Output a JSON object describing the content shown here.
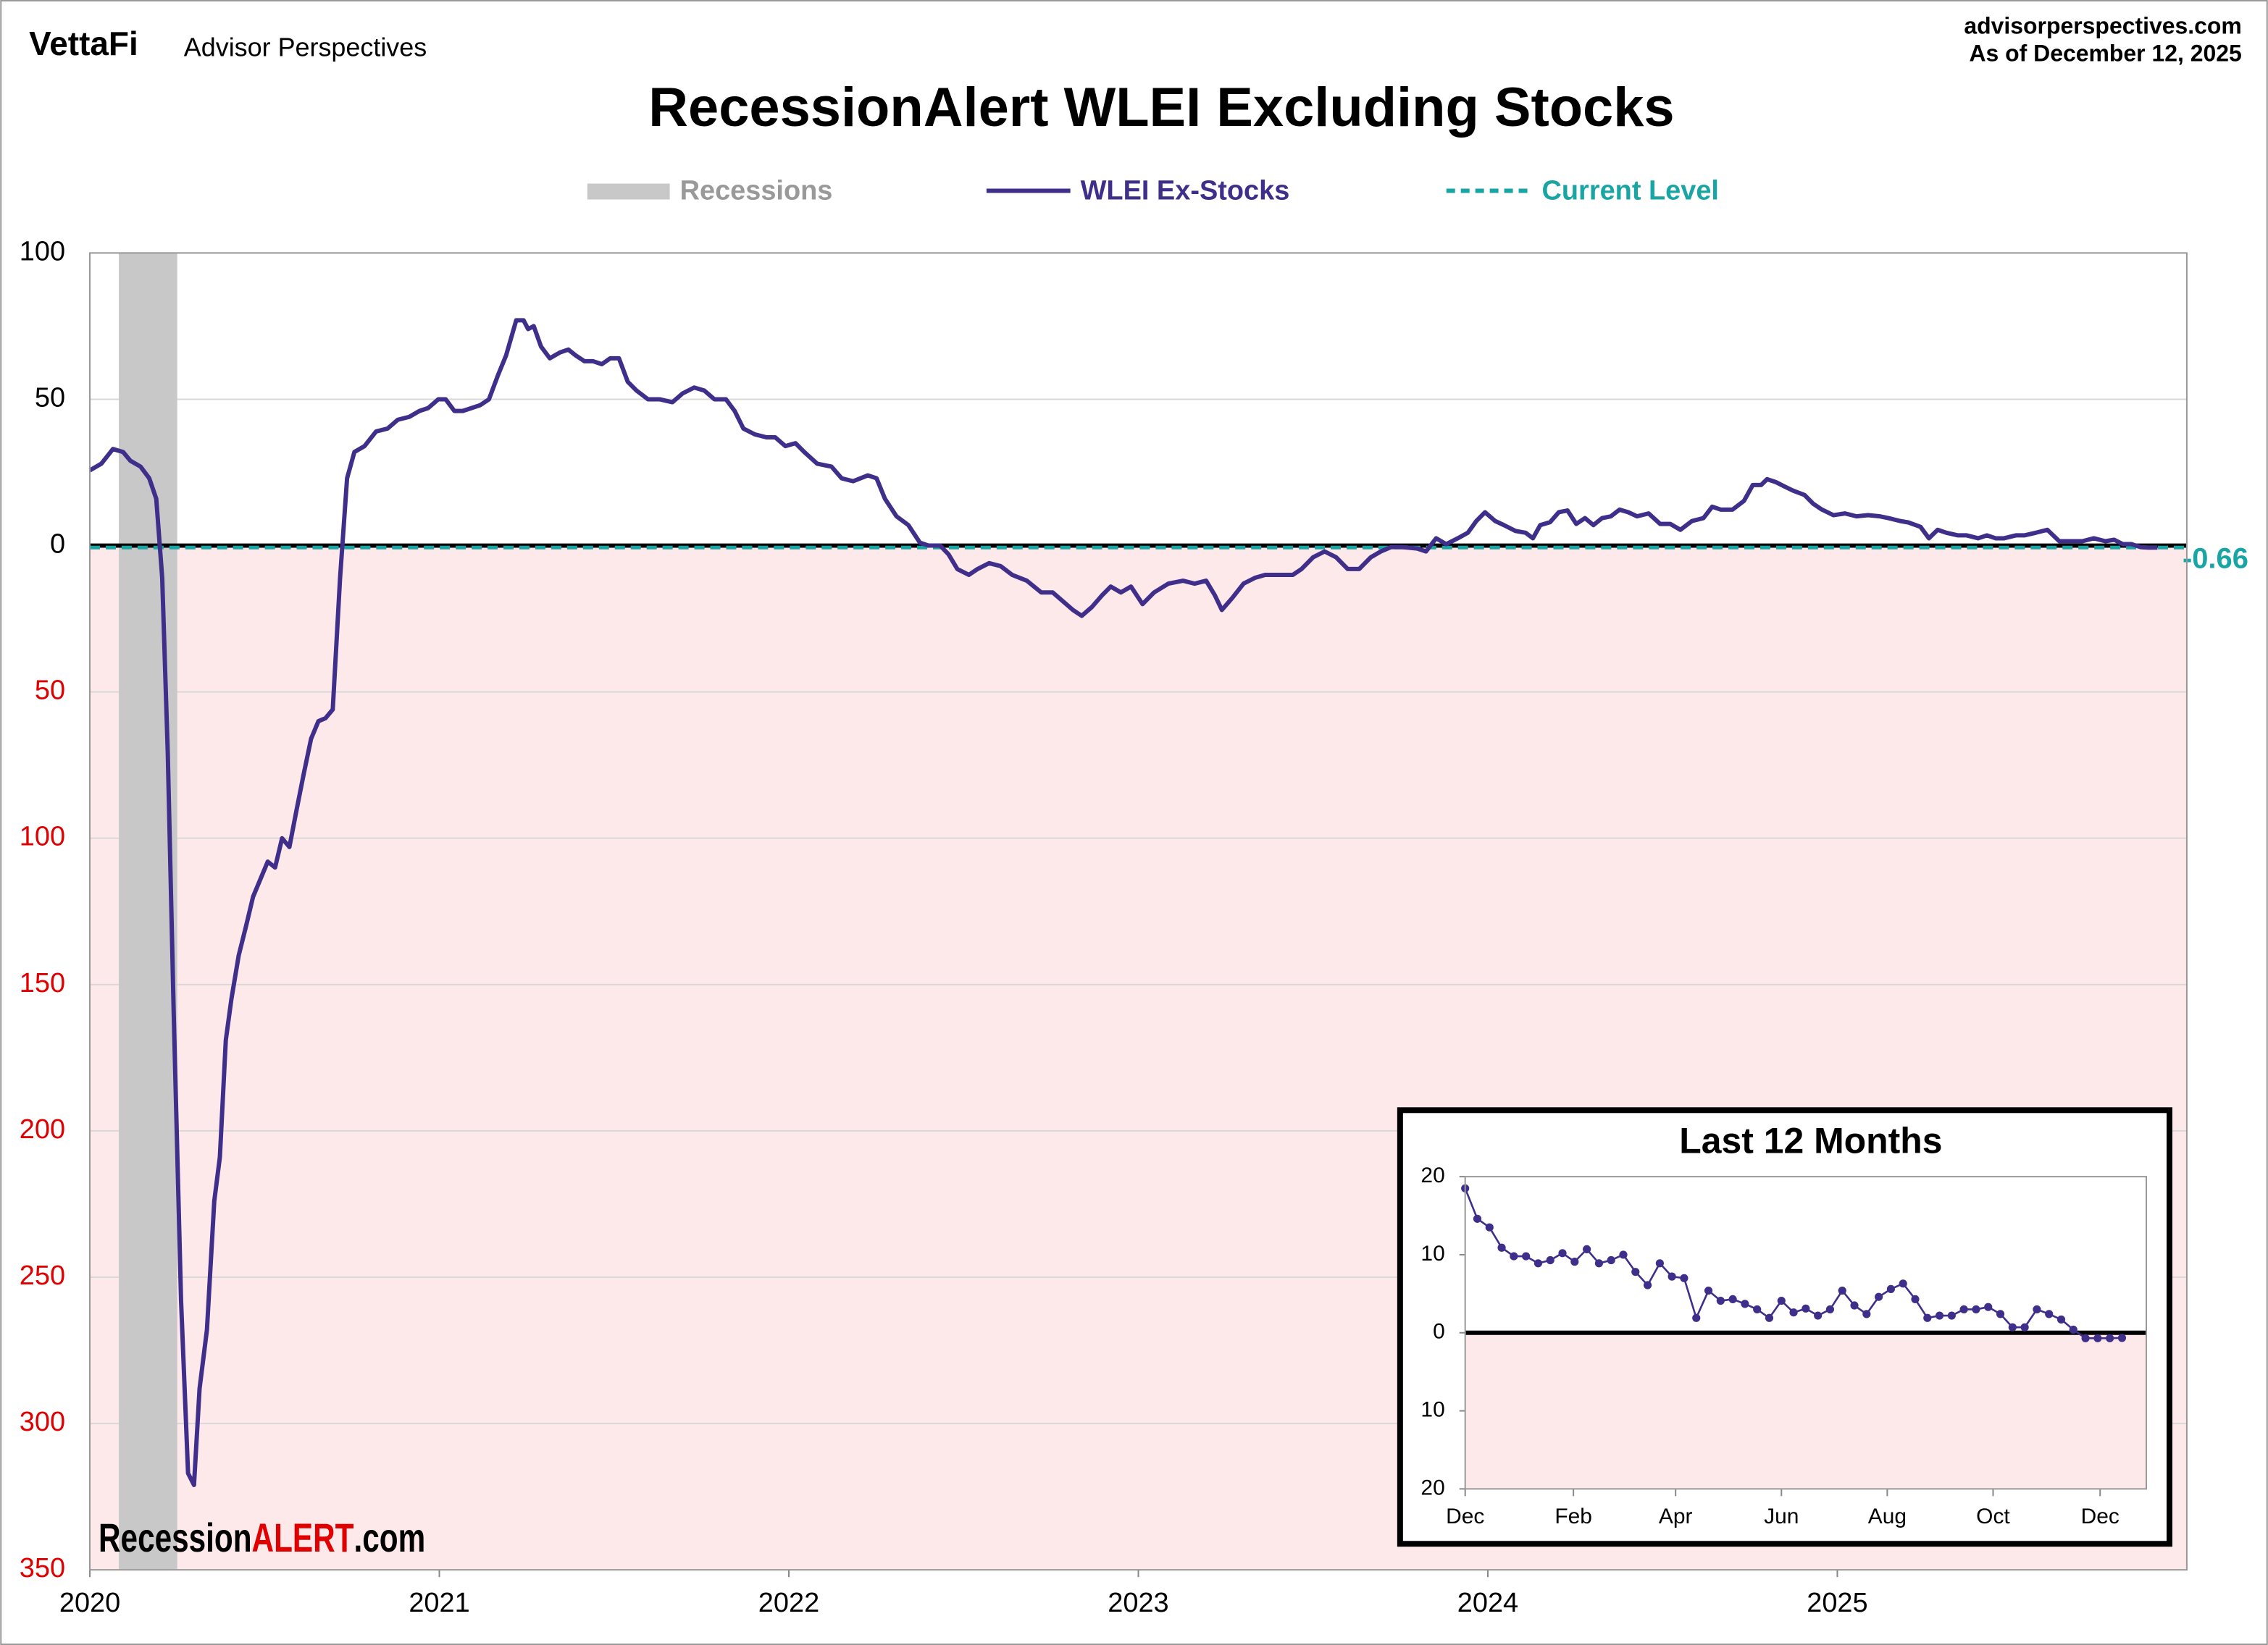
{
  "brand": "VettaFi",
  "brand_sub": "Advisor Perspectives",
  "site": "advisorperspectives.com",
  "as_of": "As of December 12, 2025",
  "watermark": [
    "Recession",
    "ALERT",
    ".com"
  ],
  "chart_data": [
    {
      "type": "line",
      "title": "RecessionAlert WLEI Excluding Stocks",
      "recessions": {
        "name": "Recessions",
        "color": "#c8c8c8",
        "ranges": [
          [
            2020.083,
            2020.25
          ]
        ]
      },
      "current_level": {
        "name": "Current Level",
        "color": "#1aa5a5",
        "value": -0.66
      },
      "negative_tick_color": "#e00000",
      "negative_fill": "#fde8ea",
      "grid": true,
      "xlim": [
        2020,
        2026
      ],
      "xticks": [
        2020,
        2021,
        2022,
        2023,
        2024,
        2025
      ],
      "ylim": [
        -350,
        100
      ],
      "yticks": [
        100,
        50,
        0,
        {
          "value": -50,
          "label": "50"
        },
        {
          "value": -100,
          "label": "100"
        },
        {
          "value": -150,
          "label": "150"
        },
        {
          "value": -200,
          "label": "200"
        },
        {
          "value": -250,
          "label": "250"
        },
        {
          "value": -300,
          "label": "300"
        },
        {
          "value": -350,
          "label": "350"
        }
      ],
      "x": [
        2020.0,
        2020.033,
        2020.066,
        2020.095,
        2020.116,
        2020.145,
        2020.17,
        2020.19,
        2020.207,
        2020.223,
        2020.24,
        2020.261,
        2020.281,
        2020.298,
        2020.314,
        2020.335,
        2020.356,
        2020.372,
        2020.389,
        2020.405,
        2020.426,
        2020.447,
        2020.467,
        2020.488,
        2020.509,
        2020.53,
        2020.55,
        2020.571,
        2020.592,
        2020.612,
        2020.633,
        2020.654,
        2020.674,
        2020.695,
        2020.716,
        2020.736,
        2020.757,
        2020.786,
        2020.819,
        2020.852,
        2020.881,
        2020.914,
        2020.943,
        2020.968,
        2020.997,
        2021.018,
        2021.043,
        2021.067,
        2021.092,
        2021.117,
        2021.142,
        2021.167,
        2021.191,
        2021.22,
        2021.241,
        2021.254,
        2021.27,
        2021.291,
        2021.316,
        2021.345,
        2021.369,
        2021.39,
        2021.415,
        2021.44,
        2021.465,
        2021.489,
        2021.514,
        2021.539,
        2021.564,
        2021.597,
        2021.63,
        2021.667,
        2021.696,
        2021.729,
        2021.758,
        2021.787,
        2021.82,
        2021.845,
        2021.87,
        2021.903,
        2021.936,
        2021.961,
        2021.99,
        2022.019,
        2022.044,
        2022.081,
        2022.122,
        2022.151,
        2022.184,
        2022.226,
        2022.251,
        2022.275,
        2022.308,
        2022.342,
        2022.375,
        2022.4,
        2022.433,
        2022.457,
        2022.482,
        2022.515,
        2022.54,
        2022.573,
        2022.606,
        2022.639,
        2022.681,
        2022.722,
        2022.755,
        2022.784,
        2022.813,
        2022.838,
        2022.867,
        2022.896,
        2022.921,
        2022.95,
        2022.979,
        2023.012,
        2023.045,
        2023.086,
        2023.128,
        2023.161,
        2023.194,
        2023.219,
        2023.239,
        2023.268,
        2023.301,
        2023.334,
        2023.363,
        2023.405,
        2023.442,
        2023.467,
        2023.5,
        2023.533,
        2023.566,
        2023.599,
        2023.632,
        2023.665,
        2023.694,
        2023.723,
        2023.756,
        2023.798,
        2023.823,
        2023.852,
        2023.881,
        2023.914,
        2023.943,
        2023.967,
        2023.992,
        2024.021,
        2024.046,
        2024.079,
        2024.108,
        2024.129,
        2024.15,
        2024.178,
        2024.203,
        2024.228,
        2024.253,
        2024.278,
        2024.302,
        2024.327,
        2024.352,
        2024.377,
        2024.402,
        2024.427,
        2024.46,
        2024.493,
        2024.522,
        2024.551,
        2024.584,
        2024.617,
        2024.642,
        2024.666,
        2024.7,
        2024.733,
        2024.758,
        2024.782,
        2024.799,
        2024.824,
        2024.849,
        2024.873,
        2024.906,
        2024.931,
        2024.956,
        2024.989,
        2025.022,
        2025.055,
        2025.088,
        2025.122,
        2025.146,
        2025.18,
        2025.204,
        2025.238,
        2025.262,
        2025.287,
        2025.312,
        2025.345,
        2025.37,
        2025.403,
        2025.428,
        2025.453,
        2025.477,
        2025.511,
        2025.535,
        2025.568,
        2025.601,
        2025.635,
        2025.668,
        2025.701,
        2025.734,
        2025.767,
        2025.792,
        2025.817,
        2025.842,
        2025.867,
        2025.891,
        2025.916
      ],
      "series": [
        {
          "name": "WLEI Ex-Stocks",
          "color": "#3f2f8a",
          "values": [
            25.7,
            28,
            33,
            32,
            29,
            27,
            23,
            16,
            -11,
            -71,
            -160,
            -258,
            -317,
            -321,
            -288,
            -268,
            -224,
            -209,
            -169,
            -155,
            -140,
            -130,
            -120,
            -114,
            -108,
            -110,
            -100,
            -103,
            -90,
            -78,
            -66,
            -60,
            -59,
            -56,
            -11,
            23,
            32,
            34,
            39,
            40,
            43,
            44,
            46,
            47,
            50,
            50,
            46,
            46,
            47,
            48,
            50,
            58,
            65,
            77,
            77,
            74,
            75,
            68,
            64,
            66,
            67,
            65,
            63,
            63,
            62,
            64,
            64,
            56,
            53,
            50,
            50,
            49,
            52,
            54,
            53,
            50,
            50,
            46,
            40,
            38,
            37,
            37,
            34,
            35,
            32,
            28,
            27,
            23,
            22,
            24,
            23,
            16,
            10,
            7,
            1,
            0,
            0,
            -3,
            -8,
            -10,
            -8,
            -6,
            -7,
            -10,
            -12,
            -16,
            -16,
            -19,
            -22,
            -24,
            -21,
            -17,
            -14,
            -16,
            -14,
            -20,
            -16,
            -13,
            -12,
            -13,
            -12,
            -17,
            -22,
            -18,
            -13,
            -11,
            -10,
            -10,
            -10,
            -8,
            -4,
            -2,
            -4,
            -8,
            -8,
            -4,
            -2,
            -0.5,
            -0.5,
            -1,
            -2,
            2.5,
            0.5,
            2.5,
            4.4,
            8.4,
            11.4,
            8.4,
            7,
            5,
            4.4,
            2.5,
            7,
            8,
            11.4,
            12,
            7.4,
            9.4,
            7,
            9.4,
            10,
            12.3,
            11.4,
            10,
            11,
            7.4,
            7.4,
            5.4,
            8.4,
            9.4,
            13.3,
            12.3,
            12.3,
            15.3,
            20.7,
            20.7,
            22.7,
            21.7,
            20.2,
            18.8,
            17.3,
            14.3,
            12.3,
            10.4,
            11,
            10,
            10.4,
            10,
            9.4,
            8.4,
            7.9,
            6.4,
            2.5,
            5.4,
            4.4,
            3.5,
            3.5,
            2.5,
            3.5,
            2.5,
            2.5,
            3.5,
            3.5,
            4.4,
            5.4,
            1.5,
            1.5,
            1.5,
            2.5,
            1.5,
            2,
            0.5,
            0.5,
            -0.5,
            -0.7,
            -0.66
          ]
        }
      ]
    },
    {
      "type": "line",
      "title": "Last 12 Months",
      "negative_tick_color": "#000000",
      "negative_fill": "#fde8ea",
      "grid": false,
      "xlim": [
        0,
        56
      ],
      "xticks": [
        {
          "value": 0,
          "label": "Dec"
        },
        {
          "value": 8.9,
          "label": "Feb"
        },
        {
          "value": 17.3,
          "label": "Apr"
        },
        {
          "value": 26,
          "label": "Jun"
        },
        {
          "value": 34.7,
          "label": "Aug"
        },
        {
          "value": 43.4,
          "label": "Oct"
        },
        {
          "value": 52.2,
          "label": "Dec"
        }
      ],
      "ylim": [
        -20,
        20
      ],
      "yticks": [
        20,
        10,
        0,
        {
          "value": -10,
          "label": "10"
        },
        {
          "value": -20,
          "label": "20"
        }
      ],
      "x": [
        0,
        1,
        2,
        3,
        4,
        5,
        6,
        7,
        8,
        9,
        10,
        11,
        12,
        13,
        14,
        15,
        16,
        17,
        18,
        19,
        20,
        21,
        22,
        23,
        24,
        25,
        26,
        27,
        28,
        29,
        30,
        31,
        32,
        33,
        34,
        35,
        36,
        37,
        38,
        39,
        40,
        41,
        42,
        43,
        44,
        45,
        46,
        47,
        48,
        49,
        50,
        51,
        52,
        53,
        54
      ],
      "series": [
        {
          "name": "WLEI Ex-Stocks",
          "color": "#3f2f8a",
          "values": [
            18.5,
            14.6,
            13.5,
            10.9,
            9.8,
            9.8,
            8.9,
            9.3,
            10.2,
            9.1,
            10.7,
            8.9,
            9.3,
            10,
            7.8,
            6.1,
            8.9,
            7.2,
            7,
            1.9,
            5.4,
            4.1,
            4.3,
            3.7,
            3,
            1.9,
            4.1,
            2.6,
            3.1,
            2.2,
            3,
            5.4,
            3.5,
            2.4,
            4.6,
            5.6,
            6.3,
            4.3,
            1.9,
            2.2,
            2.2,
            3,
            3,
            3.3,
            2.4,
            0.7,
            0.7,
            3,
            2.4,
            1.7,
            0.4,
            -0.7,
            -0.7,
            -0.7,
            -0.66
          ]
        }
      ]
    }
  ]
}
